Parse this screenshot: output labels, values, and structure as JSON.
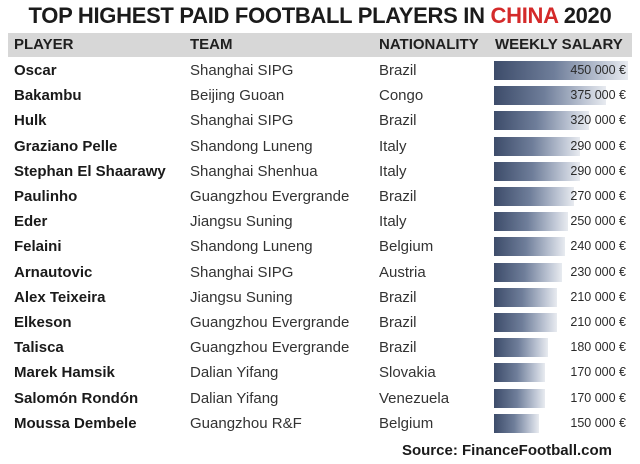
{
  "title_pre": "TOP HIGHEST PAID FOOTBALL PLAYERS IN",
  "title_highlight": "CHINA",
  "title_post": "2020",
  "colors": {
    "highlight": "#d42a2a",
    "header_bg": "#d7d7d7",
    "bar_dark": "#3d4c6a",
    "bar_light": "#e8ebf0"
  },
  "headers": {
    "player": "PLAYER",
    "team": "TEAM",
    "nationality": "NATIONALITY",
    "salary": "WEEKLY SALARY"
  },
  "source": "Source: FinanceFootball.com",
  "chart_data": {
    "type": "table",
    "columns": [
      "PLAYER",
      "TEAM",
      "NATIONALITY",
      "WEEKLY SALARY"
    ],
    "xlim": [
      0,
      450000
    ],
    "rows": [
      {
        "player": "Oscar",
        "team": "Shanghai SIPG",
        "nationality": "Brazil",
        "salary": 450000,
        "salary_label": "450 000 €"
      },
      {
        "player": "Bakambu",
        "team": "Beijing Guoan",
        "nationality": "Congo",
        "salary": 375000,
        "salary_label": "375 000 €"
      },
      {
        "player": "Hulk",
        "team": "Shanghai SIPG",
        "nationality": "Brazil",
        "salary": 320000,
        "salary_label": "320 000 €"
      },
      {
        "player": "Graziano Pelle",
        "team": "Shandong Luneng",
        "nationality": "Italy",
        "salary": 290000,
        "salary_label": "290 000 €"
      },
      {
        "player": "Stephan El Shaarawy",
        "team": "Shanghai Shenhua",
        "nationality": "Italy",
        "salary": 290000,
        "salary_label": "290 000 €"
      },
      {
        "player": "Paulinho",
        "team": "Guangzhou Evergrande",
        "nationality": "Brazil",
        "salary": 270000,
        "salary_label": "270 000 €"
      },
      {
        "player": "Eder",
        "team": "Jiangsu Suning",
        "nationality": "Italy",
        "salary": 250000,
        "salary_label": "250 000 €"
      },
      {
        "player": "Felaini",
        "team": "Shandong Luneng",
        "nationality": "Belgium",
        "salary": 240000,
        "salary_label": "240 000 €"
      },
      {
        "player": "Arnautovic",
        "team": "Shanghai SIPG",
        "nationality": "Austria",
        "salary": 230000,
        "salary_label": "230 000 €"
      },
      {
        "player": "Alex Teixeira",
        "team": "Jiangsu Suning",
        "nationality": "Brazil",
        "salary": 210000,
        "salary_label": "210 000 €"
      },
      {
        "player": "Elkeson",
        "team": "Guangzhou Evergrande",
        "nationality": "Brazil",
        "salary": 210000,
        "salary_label": "210 000 €"
      },
      {
        "player": "Talisca",
        "team": "Guangzhou Evergrande",
        "nationality": "Brazil",
        "salary": 180000,
        "salary_label": "180 000 €"
      },
      {
        "player": "Marek Hamsik",
        "team": "Dalian Yifang",
        "nationality": "Slovakia",
        "salary": 170000,
        "salary_label": "170 000 €"
      },
      {
        "player": "Salomón Rondón",
        "team": "Dalian Yifang",
        "nationality": "Venezuela",
        "salary": 170000,
        "salary_label": "170 000 €"
      },
      {
        "player": "Moussa Dembele",
        "team": "Guangzhou R&F",
        "nationality": "Belgium",
        "salary": 150000,
        "salary_label": "150 000 €"
      }
    ]
  }
}
